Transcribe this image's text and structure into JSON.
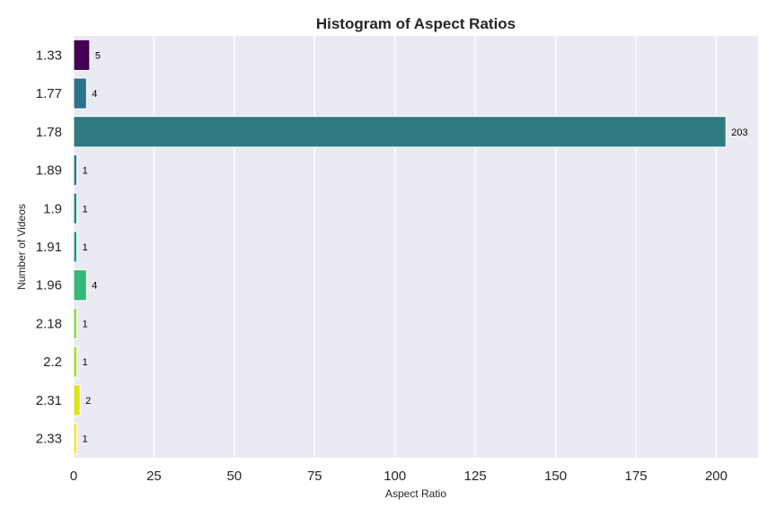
{
  "chart_data": {
    "type": "bar",
    "orientation": "horizontal",
    "title": "Histogram of Aspect Ratios",
    "xlabel": "Aspect Ratio",
    "ylabel": "Number of Videos",
    "categories": [
      "1.33",
      "1.77",
      "1.78",
      "1.89",
      "1.9",
      "1.91",
      "1.96",
      "2.18",
      "2.2",
      "2.31",
      "2.33"
    ],
    "values": [
      5,
      4,
      203,
      1,
      1,
      1,
      4,
      1,
      1,
      2,
      1
    ],
    "data_labels": [
      "5",
      "4",
      "203",
      "1",
      "1",
      "1",
      "4",
      "1",
      "1",
      "2",
      "1"
    ],
    "colors": [
      "#440154",
      "#2c728e",
      "#2e7a80",
      "#2a788e",
      "#23888e",
      "#1f988b",
      "#35b779",
      "#90d743",
      "#a8db34",
      "#dce319",
      "#f0e524"
    ],
    "x_ticks": [
      0,
      25,
      50,
      75,
      100,
      125,
      150,
      175,
      200
    ],
    "x_tick_labels": [
      "0",
      "25",
      "50",
      "75",
      "100",
      "125",
      "150",
      "175",
      "200"
    ],
    "xlim": [
      0,
      213
    ],
    "grid": true
  }
}
